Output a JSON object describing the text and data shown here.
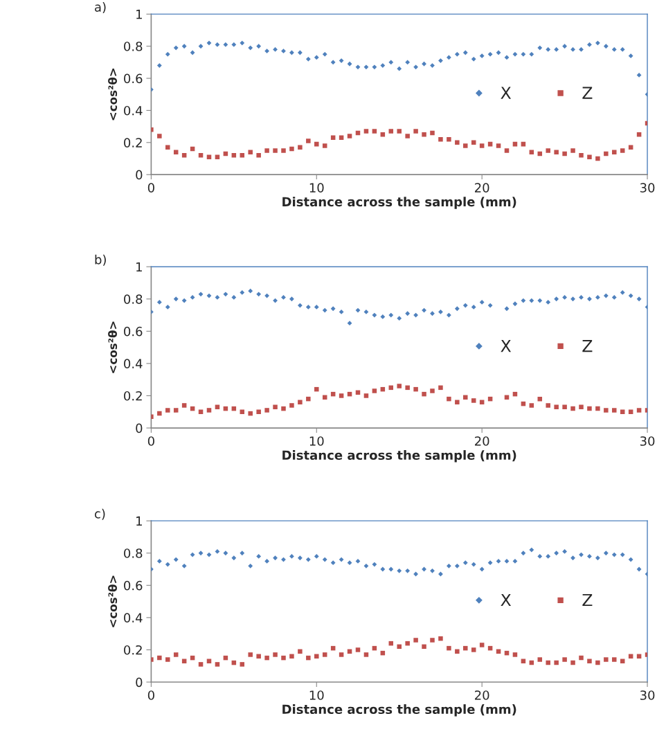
{
  "chart_data": [
    {
      "type": "scatter",
      "title": "a)",
      "xlabel": "Distance across the sample (mm)",
      "ylabel": "<cos²θ>",
      "xlim": [
        0,
        30
      ],
      "xticks": [
        0,
        10,
        20,
        30
      ],
      "ylim": [
        0,
        1
      ],
      "yticks": [
        0,
        0.2,
        0.4,
        0.6,
        0.8,
        1
      ],
      "grid": false,
      "legend": "right",
      "x": [
        0,
        0.5,
        1,
        1.5,
        2,
        2.5,
        3,
        3.5,
        4,
        4.5,
        5,
        5.5,
        6,
        6.5,
        7,
        7.5,
        8,
        8.5,
        9,
        9.5,
        10,
        10.5,
        11,
        11.5,
        12,
        12.5,
        13,
        13.5,
        14,
        14.5,
        15,
        15.5,
        16,
        16.5,
        17,
        17.5,
        18,
        18.5,
        19,
        19.5,
        20,
        20.5,
        21,
        21.5,
        22,
        22.5,
        23,
        23.5,
        24,
        24.5,
        25,
        25.5,
        26,
        26.5,
        27,
        27.5,
        28,
        28.5,
        29,
        29.5,
        30
      ],
      "series": [
        {
          "name": "X",
          "color": "#4f81bd",
          "marker": "diamond",
          "values": [
            0.53,
            0.68,
            0.75,
            0.79,
            0.8,
            0.76,
            0.8,
            0.82,
            0.81,
            0.81,
            0.81,
            0.82,
            0.79,
            0.8,
            0.77,
            0.78,
            0.77,
            0.76,
            0.76,
            0.72,
            0.73,
            0.75,
            0.7,
            0.71,
            0.69,
            0.67,
            0.67,
            0.67,
            0.68,
            0.7,
            0.66,
            0.7,
            0.67,
            0.69,
            0.68,
            0.71,
            0.73,
            0.75,
            0.76,
            0.72,
            0.74,
            0.75,
            0.76,
            0.73,
            0.75,
            0.75,
            0.75,
            0.79,
            0.78,
            0.78,
            0.8,
            0.78,
            0.78,
            0.81,
            0.82,
            0.8,
            0.78,
            0.78,
            0.74,
            0.62,
            0.5
          ]
        },
        {
          "name": "Z",
          "color": "#c0504d",
          "marker": "square",
          "values": [
            0.28,
            0.24,
            0.17,
            0.14,
            0.12,
            0.16,
            0.12,
            0.11,
            0.11,
            0.13,
            0.12,
            0.12,
            0.14,
            0.12,
            0.15,
            0.15,
            0.15,
            0.16,
            0.17,
            0.21,
            0.19,
            0.18,
            0.23,
            0.23,
            0.24,
            0.26,
            0.27,
            0.27,
            0.25,
            0.27,
            0.27,
            0.24,
            0.27,
            0.25,
            0.26,
            0.22,
            0.22,
            0.2,
            0.18,
            0.2,
            0.18,
            0.19,
            0.18,
            0.15,
            0.19,
            0.19,
            0.14,
            0.13,
            0.15,
            0.14,
            0.13,
            0.15,
            0.12,
            0.11,
            0.1,
            0.13,
            0.14,
            0.15,
            0.17,
            0.25,
            0.32
          ]
        }
      ]
    },
    {
      "type": "scatter",
      "title": "b)",
      "xlabel": "Distance across the sample (mm)",
      "ylabel": "<cos²θ>",
      "xlim": [
        0,
        30
      ],
      "xticks": [
        0,
        10,
        20,
        30
      ],
      "ylim": [
        0,
        1
      ],
      "yticks": [
        0,
        0.2,
        0.4,
        0.6,
        0.8,
        1
      ],
      "grid": false,
      "legend": "right",
      "x": [
        0,
        0.5,
        1,
        1.5,
        2,
        2.5,
        3,
        3.5,
        4,
        4.5,
        5,
        5.5,
        6,
        6.5,
        7,
        7.5,
        8,
        8.5,
        9,
        9.5,
        10,
        10.5,
        11,
        11.5,
        12,
        12.5,
        13,
        13.5,
        14,
        14.5,
        15,
        15.5,
        16,
        16.5,
        17,
        17.5,
        18,
        18.5,
        19,
        19.5,
        20,
        20.5,
        21,
        21.5,
        22,
        22.5,
        23,
        23.5,
        24,
        24.5,
        25,
        25.5,
        26,
        26.5,
        27,
        27.5,
        28,
        28.5,
        29,
        29.5,
        30
      ],
      "series": [
        {
          "name": "X",
          "color": "#4f81bd",
          "marker": "diamond",
          "values": [
            0.72,
            0.78,
            0.75,
            0.8,
            0.79,
            0.81,
            0.83,
            0.82,
            0.81,
            0.83,
            0.81,
            0.84,
            0.85,
            0.83,
            0.82,
            0.79,
            0.81,
            0.8,
            0.76,
            0.75,
            0.75,
            0.73,
            0.74,
            0.72,
            0.65,
            0.73,
            0.72,
            0.7,
            0.69,
            0.7,
            0.68,
            0.71,
            0.7,
            0.73,
            0.71,
            0.72,
            0.7,
            0.74,
            0.76,
            0.75,
            0.78,
            0.76,
            null,
            0.74,
            0.77,
            0.79,
            0.79,
            0.79,
            0.78,
            0.8,
            0.81,
            0.8,
            0.81,
            0.8,
            0.81,
            0.82,
            0.81,
            0.84,
            0.82,
            0.8,
            0.75
          ]
        },
        {
          "name": "Z",
          "color": "#c0504d",
          "marker": "square",
          "values": [
            0.07,
            0.09,
            0.11,
            0.11,
            0.14,
            0.12,
            0.1,
            0.11,
            0.13,
            0.12,
            0.12,
            0.1,
            0.09,
            0.1,
            0.11,
            0.13,
            0.12,
            0.14,
            0.16,
            0.18,
            0.24,
            0.19,
            0.21,
            0.2,
            0.21,
            0.22,
            0.2,
            0.23,
            0.24,
            0.25,
            0.26,
            0.25,
            0.24,
            0.21,
            0.23,
            0.25,
            0.18,
            0.16,
            0.19,
            0.17,
            0.16,
            0.18,
            null,
            0.19,
            0.21,
            0.15,
            0.14,
            0.18,
            0.14,
            0.13,
            0.13,
            0.12,
            0.13,
            0.12,
            0.12,
            0.11,
            0.11,
            0.1,
            0.1,
            0.11,
            0.11
          ]
        }
      ]
    },
    {
      "type": "scatter",
      "title": "c)",
      "xlabel": "Distance across the sample (mm)",
      "ylabel": "<cos²θ>",
      "xlim": [
        0,
        30
      ],
      "xticks": [
        0,
        10,
        20,
        30
      ],
      "ylim": [
        0,
        1
      ],
      "yticks": [
        0,
        0.2,
        0.4,
        0.6,
        0.8,
        1
      ],
      "grid": false,
      "legend": "right",
      "x": [
        0,
        0.5,
        1,
        1.5,
        2,
        2.5,
        3,
        3.5,
        4,
        4.5,
        5,
        5.5,
        6,
        6.5,
        7,
        7.5,
        8,
        8.5,
        9,
        9.5,
        10,
        10.5,
        11,
        11.5,
        12,
        12.5,
        13,
        13.5,
        14,
        14.5,
        15,
        15.5,
        16,
        16.5,
        17,
        17.5,
        18,
        18.5,
        19,
        19.5,
        20,
        20.5,
        21,
        21.5,
        22,
        22.5,
        23,
        23.5,
        24,
        24.5,
        25,
        25.5,
        26,
        26.5,
        27,
        27.5,
        28,
        28.5,
        29,
        29.5,
        30
      ],
      "series": [
        {
          "name": "X",
          "color": "#4f81bd",
          "marker": "diamond",
          "values": [
            0.7,
            0.75,
            0.73,
            0.76,
            0.72,
            0.79,
            0.8,
            0.79,
            0.81,
            0.8,
            0.77,
            0.8,
            0.72,
            0.78,
            0.75,
            0.77,
            0.76,
            0.78,
            0.77,
            0.76,
            0.78,
            0.76,
            0.74,
            0.76,
            0.74,
            0.75,
            0.72,
            0.73,
            0.7,
            0.7,
            0.69,
            0.69,
            0.67,
            0.7,
            0.69,
            0.67,
            0.72,
            0.72,
            0.74,
            0.73,
            0.7,
            0.74,
            0.75,
            0.75,
            0.75,
            0.8,
            0.82,
            0.78,
            0.78,
            0.8,
            0.81,
            0.77,
            0.79,
            0.78,
            0.77,
            0.8,
            0.79,
            0.79,
            0.76,
            0.7,
            0.67
          ]
        },
        {
          "name": "Z",
          "color": "#c0504d",
          "marker": "square",
          "values": [
            0.14,
            0.15,
            0.14,
            0.17,
            0.13,
            0.15,
            0.11,
            0.13,
            0.11,
            0.15,
            0.12,
            0.11,
            0.17,
            0.16,
            0.15,
            0.17,
            0.15,
            0.16,
            0.19,
            0.15,
            0.16,
            0.17,
            0.21,
            0.17,
            0.19,
            0.2,
            0.17,
            0.21,
            0.18,
            0.24,
            0.22,
            0.24,
            0.26,
            0.22,
            0.26,
            0.27,
            0.21,
            0.19,
            0.21,
            0.2,
            0.23,
            0.21,
            0.19,
            0.18,
            0.17,
            0.13,
            0.12,
            0.14,
            0.12,
            0.12,
            0.14,
            0.12,
            0.15,
            0.13,
            0.12,
            0.14,
            0.14,
            0.13,
            0.16,
            0.16,
            0.17
          ]
        }
      ]
    }
  ]
}
